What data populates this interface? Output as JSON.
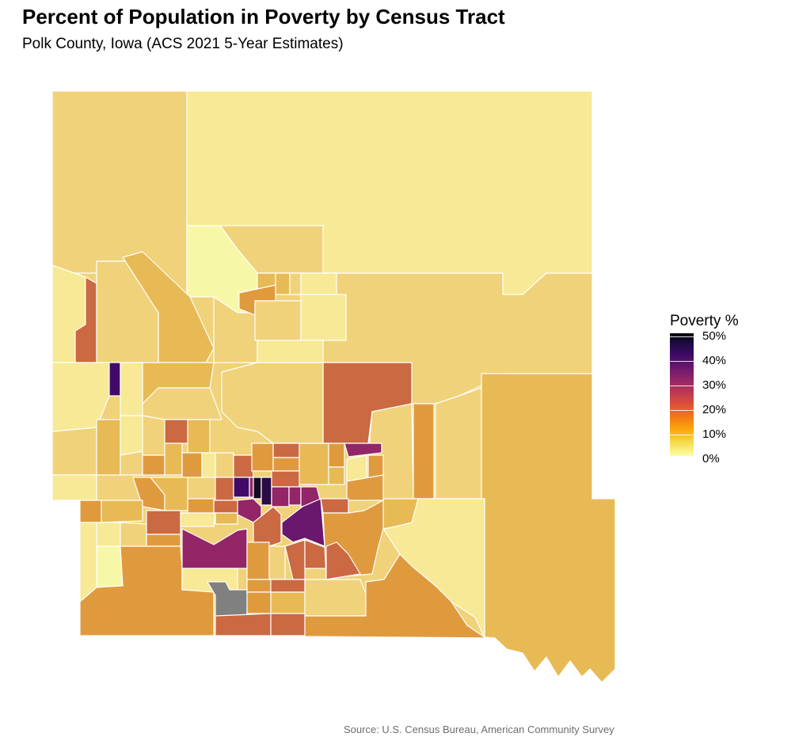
{
  "header": {
    "title": "Percent of Population in Poverty by Census Tract",
    "subtitle": "Polk County, Iowa (ACS 2021 5-Year Estimates)"
  },
  "legend": {
    "title": "Poverty %",
    "ticks": [
      {
        "label": "50%",
        "value": 50
      },
      {
        "label": "40%",
        "value": 40
      },
      {
        "label": "30%",
        "value": 30
      },
      {
        "label": "20%",
        "value": 20
      },
      {
        "label": "10%",
        "value": 10
      },
      {
        "label": "0%",
        "value": 0
      }
    ],
    "range": [
      0,
      50
    ],
    "palette": "inferno (reversed)",
    "missing_color": "#808080"
  },
  "caption": "Source: U.S. Census Bureau, American Community Survey",
  "colors": {
    "very_low": "#f7e995",
    "low": "#f0d27a",
    "moderate": "#e7ba55",
    "elevated": "#e09a3e",
    "high": "#cb6942",
    "very_high": "#932667",
    "extreme": "#420a68",
    "max": "#160a23",
    "no_data": "#808080"
  }
}
